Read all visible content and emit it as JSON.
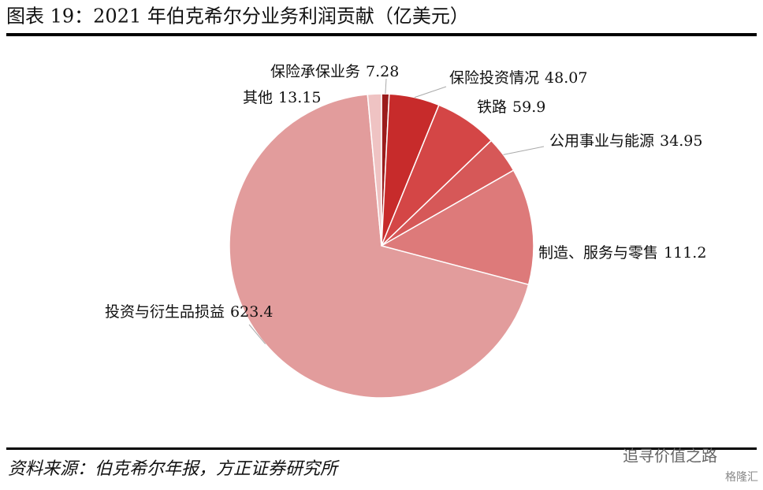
{
  "chart_data": {
    "type": "pie",
    "title": "图表 19：2021 年伯克希尔分业务利润贡献（亿美元）",
    "source": "资料来源：伯克希尔年报，方正证券研究所",
    "watermark": "追寻价值之路",
    "watermark2": "格隆汇",
    "categories": [
      "保险承保业务",
      "保险投资情况",
      "铁路",
      "公用事业与能源",
      "制造、服务与零售",
      "投资与衍生品损益",
      "其他"
    ],
    "values": [
      7.28,
      48.07,
      59.9,
      34.95,
      111.2,
      623.4,
      13.15
    ],
    "colors": [
      "#9b1c1c",
      "#c72b2b",
      "#d44646",
      "#d65858",
      "#dd7a7a",
      "#e29c9c",
      "#efc3c3"
    ]
  }
}
